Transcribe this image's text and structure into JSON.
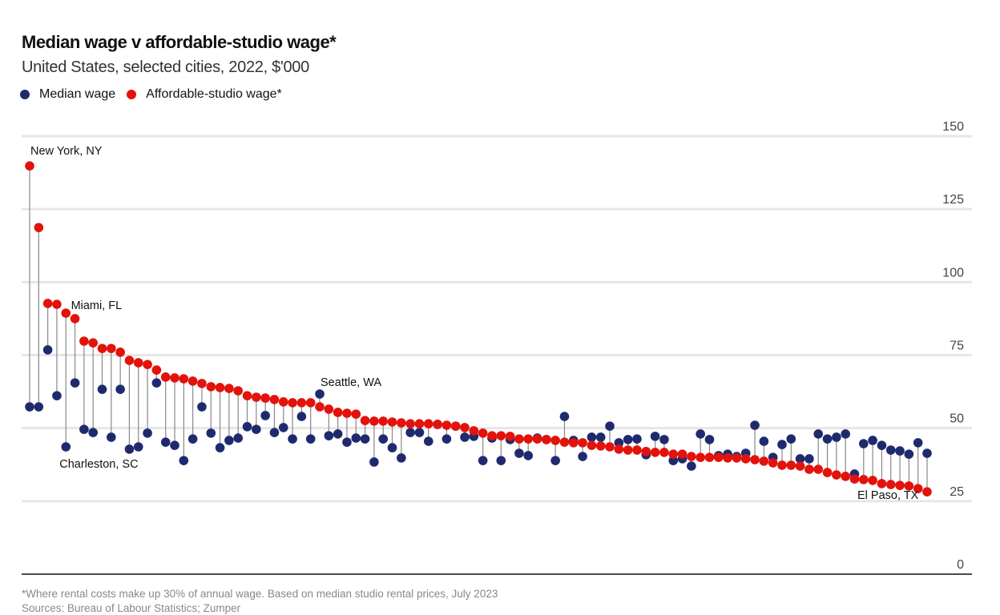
{
  "colors": {
    "median": "#1f2a6e",
    "affordable": "#e3120b",
    "grid": "#e6e6e6",
    "stem": "#888888"
  },
  "chart_data": {
    "type": "dumbbell",
    "title": "Median wage v affordable-studio wage*",
    "subtitle": "United States, selected cities, 2022, $'000",
    "legend": [
      {
        "name": "Median wage",
        "color": "#1f2a6e"
      },
      {
        "name": "Affordable-studio wage*",
        "color": "#e3120b"
      }
    ],
    "legend_placement": "top-left",
    "ylim": [
      0,
      150
    ],
    "yticks": [
      "0",
      "25",
      "50",
      "75",
      "100",
      "125",
      "150"
    ],
    "ytick_values": [
      0,
      25,
      50,
      75,
      100,
      125,
      150
    ],
    "grid": true,
    "series": [
      {
        "name": "Affordable-studio wage*",
        "values": [
          139.8,
          118.7,
          92.7,
          92.4,
          89.4,
          87.5,
          79.8,
          79.2,
          77.3,
          77.3,
          76.0,
          73.2,
          72.4,
          71.8,
          69.9,
          67.5,
          67.2,
          66.9,
          66.1,
          65.3,
          64.2,
          63.9,
          63.6,
          62.8,
          61.1,
          60.6,
          60.3,
          59.8,
          59.0,
          58.7,
          58.7,
          58.7,
          57.3,
          56.5,
          55.4,
          55.1,
          54.8,
          52.6,
          52.4,
          52.4,
          52.1,
          51.8,
          51.5,
          51.5,
          51.5,
          51.3,
          51.0,
          50.7,
          50.2,
          49.1,
          48.3,
          47.4,
          47.4,
          47.2,
          46.3,
          46.3,
          46.3,
          46.1,
          45.8,
          45.2,
          45.0,
          45.0,
          44.1,
          43.9,
          43.6,
          42.8,
          42.5,
          42.5,
          42.0,
          41.7,
          41.7,
          41.1,
          41.1,
          40.3,
          40.0,
          40.0,
          40.0,
          39.8,
          39.8,
          39.5,
          39.2,
          38.7,
          38.1,
          37.3,
          37.3,
          37.0,
          35.9,
          35.9,
          34.8,
          34.0,
          33.5,
          32.6,
          32.4,
          32.1,
          31.0,
          30.7,
          30.4,
          30.2,
          29.3,
          28.2
        ]
      },
      {
        "name": "Median wage",
        "values": [
          57.3,
          57.3,
          76.8,
          61.1,
          43.6,
          65.5,
          49.6,
          48.5,
          63.3,
          46.9,
          63.3,
          42.8,
          43.6,
          48.3,
          65.5,
          45.2,
          44.1,
          38.9,
          46.3,
          57.3,
          48.3,
          43.3,
          45.8,
          46.6,
          50.5,
          49.6,
          54.3,
          48.5,
          50.2,
          46.3,
          54.0,
          46.3,
          61.7,
          47.4,
          48.0,
          45.2,
          46.6,
          46.3,
          38.4,
          46.3,
          43.3,
          39.8,
          48.5,
          48.5,
          45.5,
          51.3,
          46.3,
          50.7,
          46.9,
          47.2,
          38.9,
          46.6,
          38.9,
          46.1,
          41.4,
          40.6,
          46.6,
          46.1,
          38.9,
          54.0,
          45.8,
          40.3,
          46.9,
          46.9,
          50.7,
          45.0,
          46.1,
          46.3,
          40.9,
          47.2,
          46.1,
          38.9,
          39.5,
          37.0,
          48.0,
          46.1,
          40.6,
          41.1,
          40.3,
          41.4,
          51.0,
          45.5,
          40.0,
          44.4,
          46.3,
          39.5,
          39.5,
          48.0,
          46.3,
          46.9,
          48.0,
          34.3,
          44.7,
          45.8,
          44.1,
          42.5,
          42.2,
          41.1,
          45.0,
          41.4
        ]
      }
    ],
    "annotations": [
      {
        "text": "New York, NY",
        "index": 0,
        "anchor": "affordable",
        "pos": "above-right"
      },
      {
        "text": "Miami, FL",
        "index": 5,
        "anchor": "affordable",
        "pos": "above-right"
      },
      {
        "text": "Charleston, SC",
        "index": 4,
        "anchor": "median",
        "pos": "below"
      },
      {
        "text": "Seattle, WA",
        "index": 32,
        "anchor": "median",
        "pos": "above-right"
      },
      {
        "text": "El Paso, TX",
        "index": 99,
        "anchor": "affordable",
        "pos": "left"
      }
    ]
  },
  "footer": {
    "note": "*Where rental costs make up 30% of annual wage. Based on median studio rental prices, July 2023",
    "sources": "Sources: Bureau of Labour Statistics; Zumper"
  }
}
